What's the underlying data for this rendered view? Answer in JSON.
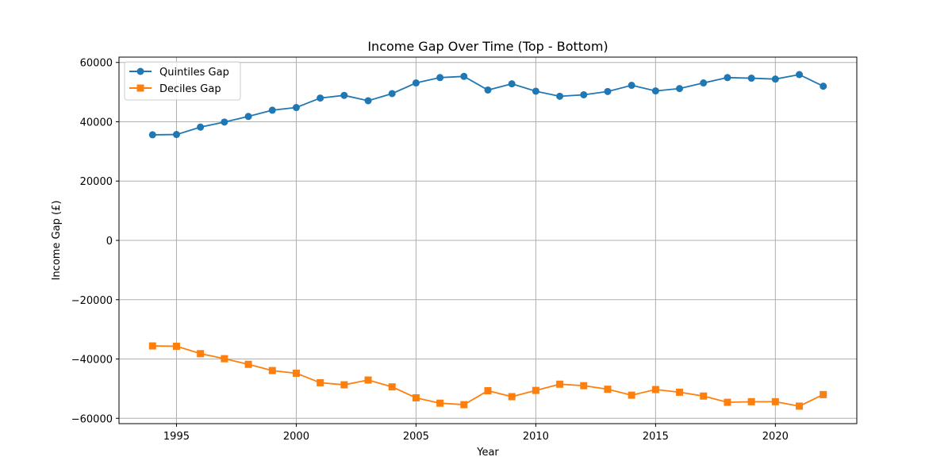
{
  "chart_data": {
    "type": "line",
    "title": "Income Gap Over Time (Top - Bottom)",
    "xlabel": "Year",
    "ylabel": "Income Gap (£)",
    "xlim": [
      1992.6,
      2023.4
    ],
    "ylim": [
      -61800,
      61800
    ],
    "x_ticks": [
      1995,
      2000,
      2005,
      2010,
      2015,
      2020
    ],
    "y_ticks": [
      -60000,
      -40000,
      -20000,
      0,
      20000,
      40000,
      60000
    ],
    "y_tick_labels": [
      "−60000",
      "−40000",
      "−20000",
      "0",
      "20000",
      "40000",
      "60000"
    ],
    "grid": true,
    "legend_position": "top-left",
    "x": [
      1994,
      1995,
      1996,
      1997,
      1998,
      1999,
      2000,
      2001,
      2002,
      2003,
      2004,
      2005,
      2006,
      2007,
      2008,
      2009,
      2010,
      2011,
      2012,
      2013,
      2014,
      2015,
      2016,
      2017,
      2018,
      2019,
      2020,
      2021,
      2022
    ],
    "series": [
      {
        "name": "Quintiles Gap",
        "color": "#1f77b4",
        "marker": "circle",
        "values": [
          35600,
          35700,
          38200,
          39900,
          41800,
          43900,
          44800,
          48000,
          48900,
          47100,
          49500,
          53100,
          54900,
          55300,
          50700,
          52800,
          50300,
          48600,
          49100,
          50200,
          52300,
          50400,
          51200,
          53100,
          54900,
          54700,
          54400,
          55900,
          52000
        ]
      },
      {
        "name": "Deciles Gap",
        "color": "#ff7f0e",
        "marker": "square",
        "values": [
          -35600,
          -35700,
          -38200,
          -39900,
          -41800,
          -43900,
          -44800,
          -48000,
          -48700,
          -47100,
          -49400,
          -53100,
          -54900,
          -55400,
          -50700,
          -52700,
          -50600,
          -48500,
          -49000,
          -50200,
          -52200,
          -50300,
          -51200,
          -52500,
          -54600,
          -54400,
          -54400,
          -55900,
          -52000
        ]
      }
    ]
  },
  "colors": {
    "grid": "#b0b0b0",
    "axes": "#000000",
    "legend_border": "#cccccc"
  }
}
